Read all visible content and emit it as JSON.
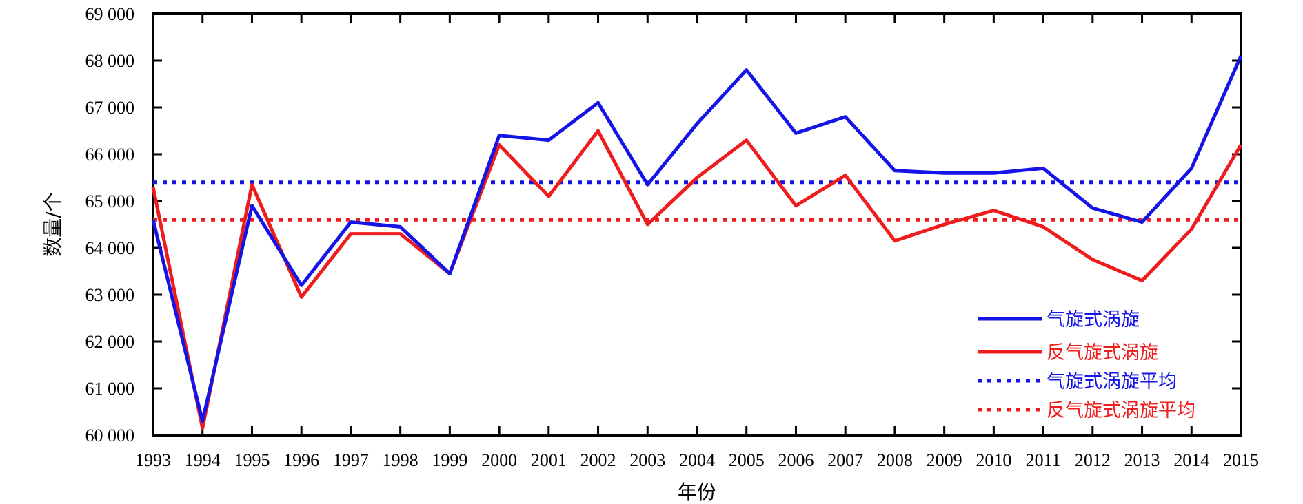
{
  "chart_data": {
    "type": "line",
    "title": "",
    "xlabel": "年份",
    "ylabel": "数量/个",
    "x": [
      1993,
      1994,
      1995,
      1996,
      1997,
      1998,
      1999,
      2000,
      2001,
      2002,
      2003,
      2004,
      2005,
      2006,
      2007,
      2008,
      2009,
      2010,
      2011,
      2012,
      2013,
      2014,
      2015
    ],
    "x_ticks": [
      "1993",
      "1994",
      "1995",
      "1996",
      "1997",
      "1998",
      "1999",
      "2000",
      "2001",
      "2002",
      "2003",
      "2004",
      "2005",
      "2006",
      "2007",
      "2008",
      "2009",
      "2010",
      "2011",
      "2012",
      "2013",
      "2014",
      "2015"
    ],
    "ylim": [
      60000,
      69000
    ],
    "y_ticks": [
      60000,
      61000,
      62000,
      63000,
      64000,
      65000,
      66000,
      67000,
      68000,
      69000
    ],
    "y_tick_labels": [
      "60 000",
      "61 000",
      "62 000",
      "63 000",
      "64 000",
      "65 000",
      "66 000",
      "67 000",
      "68 000",
      "69 000"
    ],
    "grid": false,
    "legend_position": "bottom-right",
    "series": [
      {
        "name": "气旋式涡旋",
        "style": "solid",
        "color": "#1414e6",
        "values": [
          64600,
          60300,
          64900,
          63200,
          64550,
          64450,
          63450,
          66400,
          66300,
          67100,
          65350,
          66650,
          67800,
          66450,
          66800,
          65650,
          65600,
          65600,
          65700,
          64850,
          64550,
          65700,
          68100
        ]
      },
      {
        "name": "反气旋式涡旋",
        "style": "solid",
        "color": "#ee1c1c",
        "values": [
          65300,
          60150,
          65350,
          62950,
          64300,
          64300,
          63450,
          66200,
          65100,
          66500,
          64500,
          65500,
          66300,
          64900,
          65550,
          64150,
          64500,
          64800,
          64450,
          63750,
          63300,
          64400,
          66200
        ]
      },
      {
        "name": "气旋式涡旋平均",
        "style": "dotted",
        "color": "#1414e6",
        "values": [
          65400,
          65400,
          65400,
          65400,
          65400,
          65400,
          65400,
          65400,
          65400,
          65400,
          65400,
          65400,
          65400,
          65400,
          65400,
          65400,
          65400,
          65400,
          65400,
          65400,
          65400,
          65400,
          65400
        ]
      },
      {
        "name": "反气旋式涡旋平均",
        "style": "dotted",
        "color": "#ee1c1c",
        "values": [
          64600,
          64600,
          64600,
          64600,
          64600,
          64600,
          64600,
          64600,
          64600,
          64600,
          64600,
          64600,
          64600,
          64600,
          64600,
          64600,
          64600,
          64600,
          64600,
          64600,
          64600,
          64600,
          64600
        ]
      }
    ]
  }
}
